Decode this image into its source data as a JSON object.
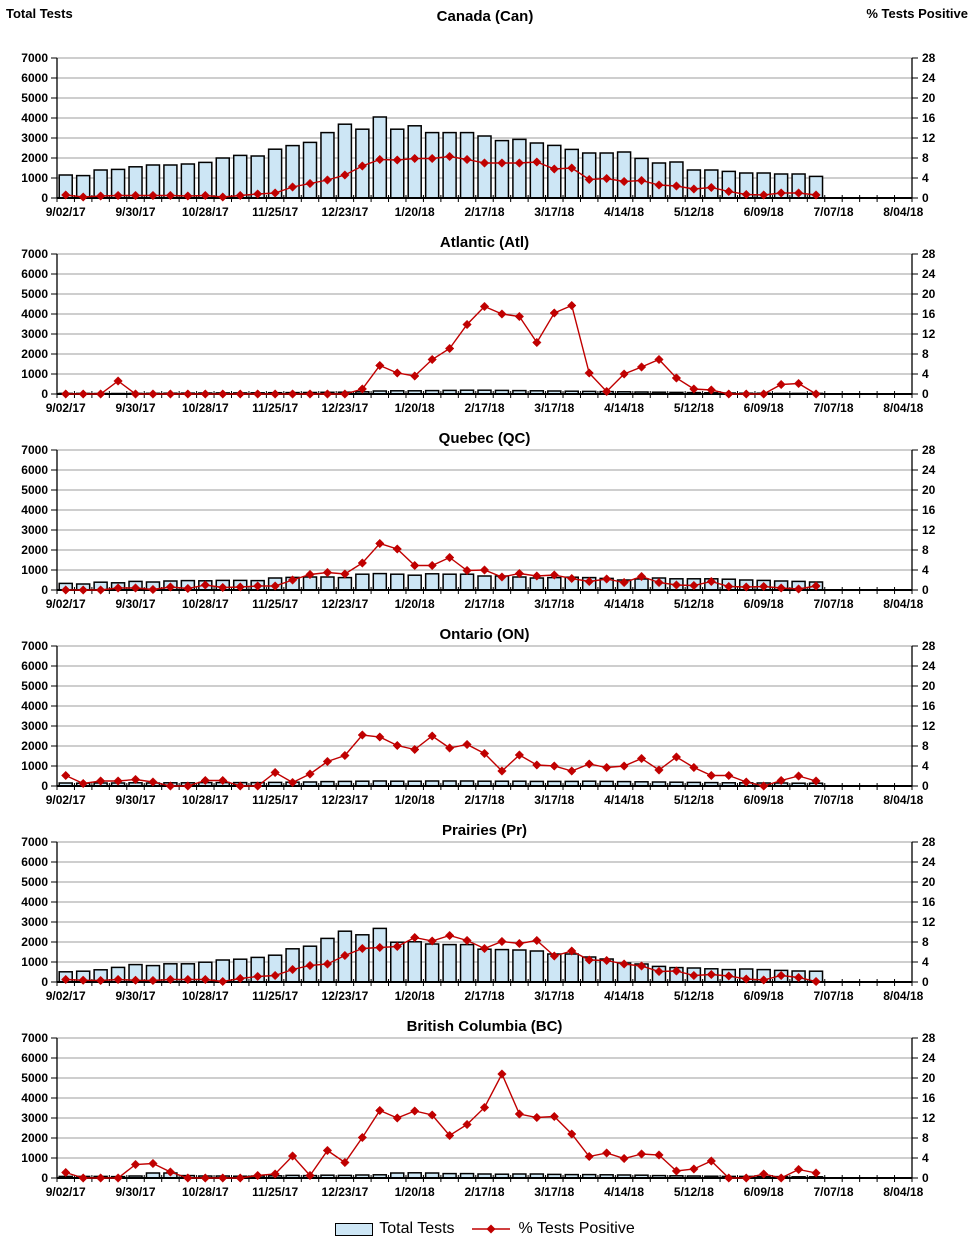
{
  "header": {
    "left_axis_title": "Total Tests",
    "right_axis_title": "% Tests Positive"
  },
  "legend": {
    "items": [
      {
        "label": "Total Tests",
        "swatch": "bar"
      },
      {
        "label": "% Tests Positive",
        "swatch": "line-diamond"
      }
    ]
  },
  "colors": {
    "bar_fill": "#CDE6F5",
    "bar_border": "#000000",
    "line": "#C00000",
    "grid": "#9C9C9C",
    "axis": "#000000"
  },
  "axes": {
    "left_ticks": [
      0,
      1000,
      2000,
      3000,
      4000,
      5000,
      6000,
      7000
    ],
    "right_ticks": [
      0,
      4,
      8,
      12,
      16,
      20,
      24,
      28
    ],
    "ylim_left": [
      0,
      7000
    ],
    "ylim_right": [
      0,
      28
    ],
    "x_labels": [
      "9/02/17",
      "9/30/17",
      "10/28/17",
      "11/25/17",
      "12/23/17",
      "1/20/18",
      "2/17/18",
      "3/17/18",
      "4/14/18",
      "5/12/18",
      "6/09/18",
      "7/07/18",
      "8/04/18"
    ],
    "weeks_total": 49,
    "data_weeks": 44,
    "grid": true
  },
  "chart_data": [
    {
      "type": "bar+line",
      "key": "can",
      "title": "Canada (Can)",
      "series": [
        {
          "name": "Total Tests",
          "axis": "left",
          "values": [
            1150,
            1120,
            1400,
            1430,
            1560,
            1650,
            1650,
            1700,
            1780,
            2000,
            2130,
            2100,
            2440,
            2620,
            2780,
            3270,
            3690,
            3440,
            4050,
            3440,
            3610,
            3270,
            3270,
            3270,
            3100,
            2870,
            2930,
            2750,
            2630,
            2430,
            2250,
            2250,
            2300,
            1980,
            1750,
            1800,
            1400,
            1400,
            1330,
            1250,
            1250,
            1200,
            1200,
            1080
          ]
        },
        {
          "name": "% Tests Positive",
          "axis": "right",
          "values": [
            0.6,
            0.2,
            0.4,
            0.5,
            0.5,
            0.5,
            0.5,
            0.4,
            0.5,
            0.2,
            0.5,
            0.8,
            1.0,
            2.2,
            2.9,
            3.6,
            4.6,
            6.4,
            7.7,
            7.6,
            7.9,
            7.9,
            8.3,
            7.7,
            7.0,
            7.0,
            7.0,
            7.2,
            5.8,
            6.0,
            3.7,
            3.9,
            3.3,
            3.5,
            2.6,
            2.4,
            1.8,
            2.1,
            1.3,
            0.7,
            0.6,
            1.0,
            1.0,
            0.6
          ]
        }
      ]
    },
    {
      "type": "bar+line",
      "key": "atl",
      "title": "Atlantic (Atl)",
      "series": [
        {
          "name": "Total Tests",
          "axis": "left",
          "values": [
            30,
            30,
            25,
            25,
            30,
            35,
            40,
            45,
            50,
            55,
            55,
            60,
            65,
            70,
            75,
            85,
            90,
            110,
            150,
            160,
            160,
            170,
            180,
            190,
            190,
            180,
            170,
            160,
            150,
            140,
            130,
            120,
            110,
            100,
            90,
            80,
            70,
            60,
            50,
            40,
            40,
            30,
            30,
            30
          ]
        },
        {
          "name": "% Tests Positive",
          "axis": "right",
          "values": [
            0,
            0,
            0,
            2.6,
            0,
            0,
            0,
            0,
            0,
            0,
            0,
            0,
            0,
            0,
            0,
            0,
            0,
            1.0,
            5.7,
            4.2,
            3.6,
            6.9,
            9.1,
            13.9,
            17.5,
            16.0,
            15.5,
            10.3,
            16.2,
            17.7,
            4.2,
            0.5,
            4.0,
            5.4,
            6.9,
            3.2,
            1.0,
            0.8,
            0,
            0,
            0,
            1.9,
            2.1,
            0
          ]
        }
      ]
    },
    {
      "type": "bar+line",
      "key": "qc",
      "title": "Quebec (QC)",
      "series": [
        {
          "name": "Total Tests",
          "axis": "left",
          "values": [
            330,
            300,
            390,
            360,
            430,
            400,
            450,
            470,
            460,
            480,
            480,
            470,
            600,
            630,
            650,
            650,
            620,
            790,
            820,
            790,
            740,
            810,
            790,
            790,
            700,
            700,
            650,
            600,
            620,
            640,
            620,
            580,
            500,
            550,
            600,
            560,
            560,
            560,
            540,
            500,
            480,
            450,
            430,
            400
          ]
        },
        {
          "name": "% Tests Positive",
          "axis": "right",
          "values": [
            0,
            0,
            0,
            0.4,
            0.4,
            0.1,
            0.6,
            0.3,
            1.0,
            0.5,
            0.6,
            0.8,
            0.8,
            2.0,
            3.1,
            3.5,
            3.2,
            5.4,
            9.3,
            8.2,
            4.9,
            4.9,
            6.5,
            3.9,
            4.0,
            2.6,
            3.3,
            2.8,
            3.0,
            2.3,
            1.7,
            2.2,
            1.5,
            2.7,
            1.5,
            1.0,
            0.9,
            1.7,
            0.7,
            0.6,
            0.7,
            0.4,
            0.2,
            0.8
          ]
        }
      ]
    },
    {
      "type": "bar+line",
      "key": "on",
      "title": "Ontario (ON)",
      "series": [
        {
          "name": "Total Tests",
          "axis": "left",
          "values": [
            150,
            140,
            150,
            150,
            160,
            150,
            160,
            160,
            170,
            170,
            170,
            170,
            180,
            190,
            200,
            220,
            230,
            240,
            250,
            240,
            240,
            250,
            250,
            250,
            240,
            240,
            240,
            230,
            230,
            230,
            240,
            230,
            220,
            210,
            200,
            190,
            180,
            170,
            160,
            160,
            150,
            150,
            140,
            140
          ]
        },
        {
          "name": "% Tests Positive",
          "axis": "right",
          "values": [
            2.1,
            0.5,
            1.0,
            1.0,
            1.3,
            0.8,
            0,
            0,
            1.1,
            1.1,
            0,
            0,
            2.7,
            0.7,
            2.4,
            4.9,
            6.1,
            10.2,
            9.8,
            8.1,
            7.3,
            10.0,
            7.6,
            8.3,
            6.5,
            3.0,
            6.2,
            4.2,
            4.0,
            3.0,
            4.4,
            3.7,
            4.0,
            5.5,
            3.2,
            5.8,
            3.7,
            2.1,
            2.1,
            0.8,
            0,
            1.1,
            2.0,
            1.0
          ]
        }
      ]
    },
    {
      "type": "bar+line",
      "key": "pr",
      "title": "Prairies (Pr)",
      "series": [
        {
          "name": "Total Tests",
          "axis": "left",
          "values": [
            510,
            540,
            610,
            730,
            870,
            820,
            910,
            910,
            990,
            1100,
            1140,
            1230,
            1340,
            1660,
            1790,
            2180,
            2540,
            2360,
            2680,
            1990,
            2010,
            1900,
            1870,
            1870,
            1640,
            1620,
            1600,
            1550,
            1400,
            1400,
            1250,
            1150,
            950,
            900,
            780,
            720,
            700,
            660,
            620,
            650,
            620,
            580,
            550,
            540
          ]
        },
        {
          "name": "% Tests Positive",
          "axis": "right",
          "values": [
            0.5,
            0.35,
            0.3,
            0.5,
            0.35,
            0.3,
            0.5,
            0.5,
            0.5,
            0.1,
            0.7,
            1.1,
            1.3,
            2.5,
            3.3,
            3.6,
            5.3,
            6.7,
            6.9,
            7.1,
            8.9,
            8.2,
            9.3,
            8.3,
            6.7,
            8.1,
            7.7,
            8.3,
            5.2,
            6.2,
            4.4,
            4.3,
            3.6,
            3.2,
            2.1,
            2.2,
            1.3,
            1.5,
            1.2,
            0.6,
            0.4,
            1.3,
            0.9,
            0.1
          ]
        }
      ]
    },
    {
      "type": "bar+line",
      "key": "bc",
      "title": "British Columbia (BC)",
      "series": [
        {
          "name": "Total Tests",
          "axis": "left",
          "values": [
            80,
            80,
            80,
            70,
            100,
            250,
            250,
            120,
            100,
            100,
            90,
            100,
            110,
            130,
            120,
            140,
            130,
            150,
            160,
            250,
            260,
            250,
            220,
            220,
            200,
            190,
            200,
            200,
            180,
            170,
            170,
            160,
            150,
            140,
            120,
            110,
            100,
            90,
            80,
            80,
            70,
            70,
            60,
            60
          ]
        },
        {
          "name": "% Tests Positive",
          "axis": "right",
          "values": [
            1.1,
            0,
            0,
            0,
            2.7,
            2.9,
            1.2,
            0,
            0,
            0,
            0,
            0.5,
            0.8,
            4.4,
            0.5,
            5.5,
            3.1,
            8.1,
            13.5,
            12.0,
            13.4,
            12.6,
            8.5,
            10.7,
            14.1,
            20.8,
            12.8,
            12.1,
            12.3,
            8.8,
            4.3,
            5.0,
            3.9,
            4.8,
            4.6,
            1.4,
            1.8,
            3.4,
            0,
            0,
            0.8,
            0,
            1.7,
            1.0
          ]
        }
      ]
    }
  ]
}
